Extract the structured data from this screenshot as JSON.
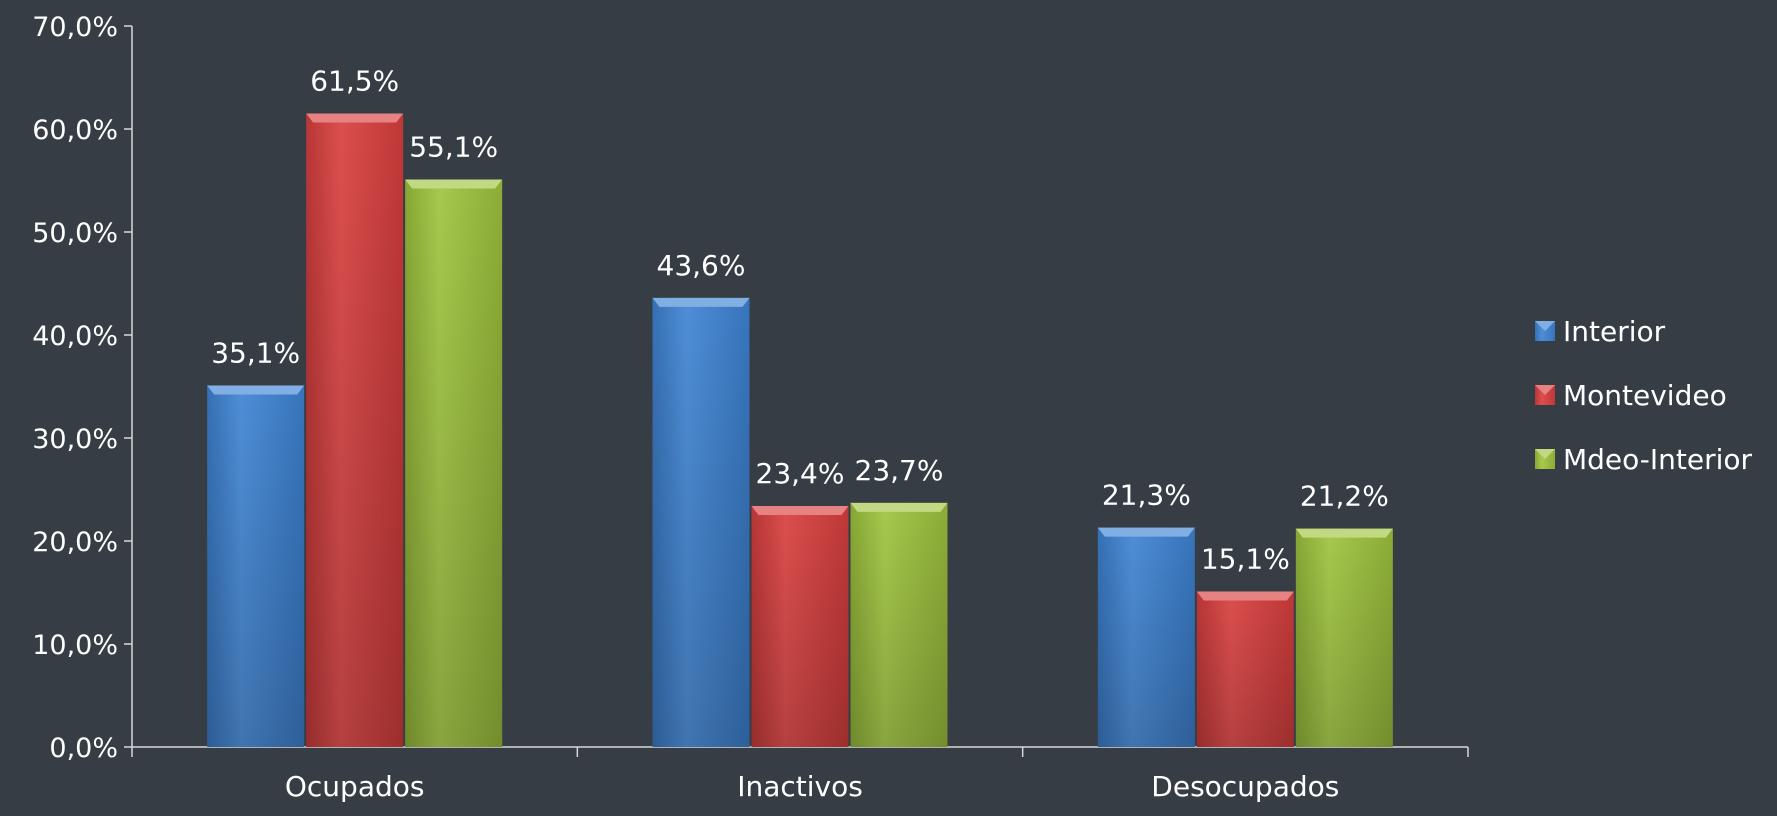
{
  "chart_data": {
    "type": "bar",
    "title": "",
    "xlabel": "",
    "ylabel": "",
    "categories": [
      "Ocupados",
      "Inactivos",
      "Desocupados"
    ],
    "series": [
      {
        "name": "Interior",
        "values": [
          35.1,
          43.6,
          21.3
        ],
        "labels": [
          "35,1%",
          "43,6%",
          "21,3%"
        ],
        "color": "#3f84d4"
      },
      {
        "name": "Montevideo",
        "values": [
          61.5,
          23.4,
          15.1
        ],
        "labels": [
          "61,5%",
          "23,4%",
          "15,1%"
        ],
        "color": "#d9403f"
      },
      {
        "name": "Mdeo-Interior",
        "values": [
          55.1,
          23.7,
          21.2
        ],
        "labels": [
          "55,1%",
          "23,7%",
          "21,2%"
        ],
        "color": "#9fc43e"
      }
    ],
    "ylim": [
      0,
      70
    ],
    "yticks": [
      0,
      10,
      20,
      30,
      40,
      50,
      60,
      70
    ],
    "ytick_labels": [
      "0,0%",
      "10,0%",
      "20,0%",
      "30,0%",
      "40,0%",
      "50,0%",
      "60,0%",
      "70,0%"
    ],
    "grid": false,
    "legend_position": "right"
  },
  "colors": {
    "background": "#363d45",
    "axis": "#d8d8d8",
    "text": "#ffffff"
  }
}
